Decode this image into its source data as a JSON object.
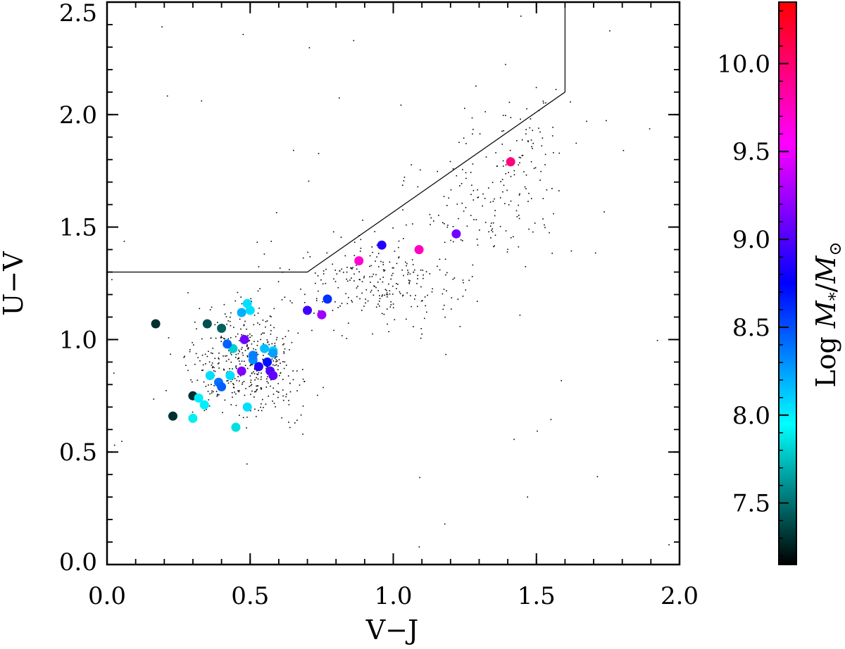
{
  "chart_data": {
    "type": "scatter",
    "xlabel": "V−J",
    "ylabel": "U−V",
    "xlim": [
      0.0,
      2.0
    ],
    "ylim": [
      0.0,
      2.5
    ],
    "x_ticks": [
      "0.0",
      "0.5",
      "1.0",
      "1.5",
      "2.0"
    ],
    "y_ticks": [
      "0.0",
      "0.5",
      "1.0",
      "1.5",
      "2.0",
      "2.5"
    ],
    "selection_boundary": {
      "x": [
        0.0,
        0.7,
        1.6,
        1.6
      ],
      "y": [
        1.3,
        1.3,
        2.1,
        2.5
      ]
    },
    "colorbar": {
      "label_prefix": "Log ",
      "label_math": "M",
      "label_sub": "*",
      "label_slash": "/",
      "label_sub2": "⊙",
      "range": [
        7.15,
        10.35
      ],
      "ticks": [
        "7.5",
        "8.0",
        "8.5",
        "9.0",
        "9.5",
        "10.0"
      ],
      "colors": [
        "#000000",
        "#00ffff",
        "#0000ff",
        "#ff00ff",
        "#ff0000"
      ]
    },
    "points": [
      {
        "x": 0.17,
        "y": 1.07,
        "logm": 7.3
      },
      {
        "x": 0.23,
        "y": 0.66,
        "logm": 7.3
      },
      {
        "x": 0.3,
        "y": 0.75,
        "logm": 7.3
      },
      {
        "x": 0.35,
        "y": 1.07,
        "logm": 7.4
      },
      {
        "x": 0.4,
        "y": 1.05,
        "logm": 7.45
      },
      {
        "x": 0.44,
        "y": 0.96,
        "logm": 7.8
      },
      {
        "x": 0.45,
        "y": 0.61,
        "logm": 7.85
      },
      {
        "x": 0.3,
        "y": 0.65,
        "logm": 7.9
      },
      {
        "x": 0.32,
        "y": 0.74,
        "logm": 8.0
      },
      {
        "x": 0.34,
        "y": 0.71,
        "logm": 8.0
      },
      {
        "x": 0.36,
        "y": 0.84,
        "logm": 8.05
      },
      {
        "x": 0.43,
        "y": 0.84,
        "logm": 8.05
      },
      {
        "x": 0.49,
        "y": 0.7,
        "logm": 8.05
      },
      {
        "x": 0.49,
        "y": 1.16,
        "logm": 8.05
      },
      {
        "x": 0.5,
        "y": 1.13,
        "logm": 8.05
      },
      {
        "x": 0.47,
        "y": 1.12,
        "logm": 8.2
      },
      {
        "x": 0.55,
        "y": 0.96,
        "logm": 8.15
      },
      {
        "x": 0.58,
        "y": 0.95,
        "logm": 8.1
      },
      {
        "x": 0.58,
        "y": 0.94,
        "logm": 8.25
      },
      {
        "x": 0.51,
        "y": 0.91,
        "logm": 8.3
      },
      {
        "x": 0.51,
        "y": 0.93,
        "logm": 8.35
      },
      {
        "x": 0.39,
        "y": 0.81,
        "logm": 8.4
      },
      {
        "x": 0.4,
        "y": 0.79,
        "logm": 8.45
      },
      {
        "x": 0.42,
        "y": 0.98,
        "logm": 8.45
      },
      {
        "x": 0.77,
        "y": 1.18,
        "logm": 8.6
      },
      {
        "x": 0.56,
        "y": 0.9,
        "logm": 8.7
      },
      {
        "x": 0.53,
        "y": 0.88,
        "logm": 8.85
      },
      {
        "x": 0.96,
        "y": 1.42,
        "logm": 8.85
      },
      {
        "x": 0.7,
        "y": 1.13,
        "logm": 8.95
      },
      {
        "x": 0.57,
        "y": 0.86,
        "logm": 9.0
      },
      {
        "x": 0.58,
        "y": 0.84,
        "logm": 9.05
      },
      {
        "x": 0.48,
        "y": 1.0,
        "logm": 9.1
      },
      {
        "x": 0.47,
        "y": 0.86,
        "logm": 9.15
      },
      {
        "x": 1.22,
        "y": 1.47,
        "logm": 9.1
      },
      {
        "x": 0.75,
        "y": 1.11,
        "logm": 9.25
      },
      {
        "x": 0.88,
        "y": 1.35,
        "logm": 9.7
      },
      {
        "x": 1.09,
        "y": 1.4,
        "logm": 9.75
      },
      {
        "x": 1.41,
        "y": 1.79,
        "logm": 9.95
      }
    ]
  }
}
